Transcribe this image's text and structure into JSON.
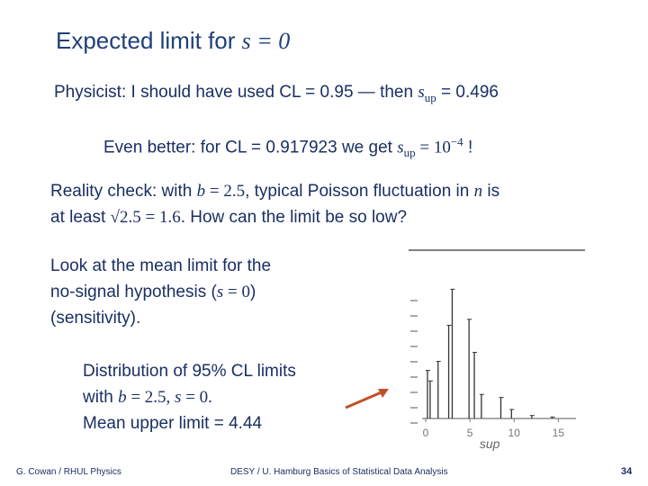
{
  "slide": {
    "title_text": "Expected limit for ",
    "title_math": "s = 0",
    "physicist": {
      "prefix": "Physicist:  I should have used CL = 0.95 — then ",
      "var": "s",
      "sub": "up",
      "value": " = 0.496"
    },
    "better": {
      "prefix": "Even better:  for CL = 0.917923 we get ",
      "var": "s",
      "sub": "up",
      "eq": " = 10",
      "exp": "−4",
      "suffix": " !"
    },
    "reality": {
      "line1_a": "Reality check:  with ",
      "line1_b_var": "b",
      "line1_b_val": " = 2.5",
      "line1_c": ", typical Poisson fluctuation in ",
      "line1_d_var": "n",
      "line1_e": " is",
      "line2_a": "at least ",
      "line2_math": "√2.5 = 1.6",
      "line2_b": ".  How can the limit be so low?"
    },
    "look": {
      "line1": "Look at the mean limit for the",
      "line2_a": "no-signal hypothesis (",
      "line2_math_var": "s",
      "line2_math_val": " = 0",
      "line2_b": ")",
      "line3": "(sensitivity)."
    },
    "distribution": {
      "line1": "Distribution of 95% CL limits",
      "line2_a": "with ",
      "line2_b_var": "b",
      "line2_b_val": " = 2.5, ",
      "line2_c_var": "s",
      "line2_c_val": " = 0.",
      "line3": "Mean upper limit = 4.44"
    },
    "footer": {
      "left": "G. Cowan / RHUL Physics",
      "center": "DESY / U. Hamburg Basics of Statistical Data Analysis",
      "page": "34"
    },
    "colors": {
      "title": "#1f3f7a",
      "text": "#1a2f63",
      "arrow": "#c0502a"
    }
  },
  "chart_data": {
    "type": "bar",
    "title": "",
    "xlabel": "sup",
    "ylabel": "",
    "xlim": [
      0,
      17
    ],
    "xticks": [
      "0",
      "5",
      "10",
      "15"
    ],
    "x": [
      0.2,
      0.5,
      1.4,
      2.6,
      3.0,
      4.9,
      5.5,
      6.3,
      8.5,
      9.7,
      12.0,
      14.3
    ],
    "values": [
      0.32,
      0.25,
      0.38,
      0.62,
      0.86,
      0.66,
      0.44,
      0.16,
      0.14,
      0.06,
      0.02,
      0.01
    ]
  }
}
